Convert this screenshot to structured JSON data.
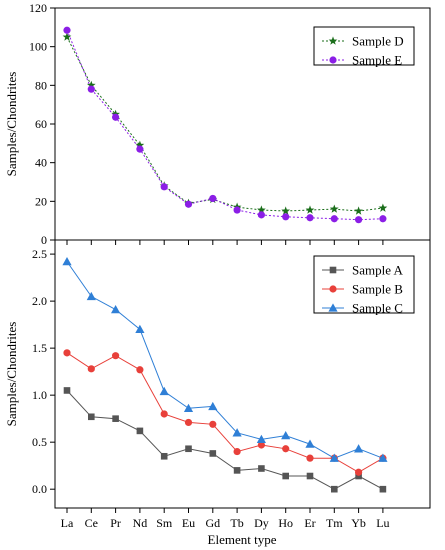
{
  "chart_data": [
    {
      "type": "line",
      "xlabel": "",
      "ylabel": "Samples/Chondrites",
      "categories": [
        "La",
        "Ce",
        "Pr",
        "Nd",
        "Sm",
        "Eu",
        "Gd",
        "Tb",
        "Dy",
        "Ho",
        "Er",
        "Tm",
        "Yb",
        "Lu"
      ],
      "ylim": [
        0,
        120
      ],
      "yticks": [
        0,
        20,
        40,
        60,
        80,
        100,
        120
      ],
      "grid": false,
      "legend_position": "top-right",
      "series": [
        {
          "name": "Sample D",
          "color": "#1a6e1a",
          "marker": "star",
          "values": [
            105,
            80,
            65,
            49,
            28,
            19,
            21,
            17,
            15.5,
            15,
            15.5,
            16,
            15,
            16.5
          ]
        },
        {
          "name": "Sample E",
          "color": "#8b1ee6",
          "marker": "circle",
          "values": [
            108.5,
            78,
            63.5,
            47,
            27.5,
            18.5,
            21.5,
            15.5,
            13,
            12,
            11.5,
            11,
            10.5,
            11
          ]
        }
      ]
    },
    {
      "type": "line",
      "xlabel": "Element type",
      "ylabel": "Samples/Chondrites",
      "categories": [
        "La",
        "Ce",
        "Pr",
        "Nd",
        "Sm",
        "Eu",
        "Gd",
        "Tb",
        "Dy",
        "Ho",
        "Er",
        "Tm",
        "Yb",
        "Lu"
      ],
      "ylim": [
        -0.2,
        2.65
      ],
      "yticks": [
        0.0,
        0.5,
        1.0,
        1.5,
        2.0,
        2.5
      ],
      "ytick_labels": [
        "0.0",
        "0.5",
        "1.0",
        "1.5",
        "2.0",
        "2.5"
      ],
      "grid": false,
      "legend_position": "top-right",
      "series": [
        {
          "name": "Sample A",
          "color": "#555555",
          "marker": "square",
          "values": [
            1.05,
            0.77,
            0.75,
            0.62,
            0.35,
            0.43,
            0.38,
            0.2,
            0.22,
            0.14,
            0.14,
            0.0,
            0.14,
            0.0
          ]
        },
        {
          "name": "Sample B",
          "color": "#e8403a",
          "marker": "circle",
          "values": [
            1.45,
            1.28,
            1.42,
            1.27,
            0.8,
            0.71,
            0.69,
            0.4,
            0.47,
            0.43,
            0.33,
            0.33,
            0.18,
            0.33
          ]
        },
        {
          "name": "Sample C",
          "color": "#2f7fd6",
          "marker": "triangle",
          "values": [
            2.42,
            2.05,
            1.91,
            1.7,
            1.04,
            0.86,
            0.88,
            0.6,
            0.53,
            0.57,
            0.48,
            0.33,
            0.43,
            0.33
          ]
        }
      ]
    }
  ]
}
